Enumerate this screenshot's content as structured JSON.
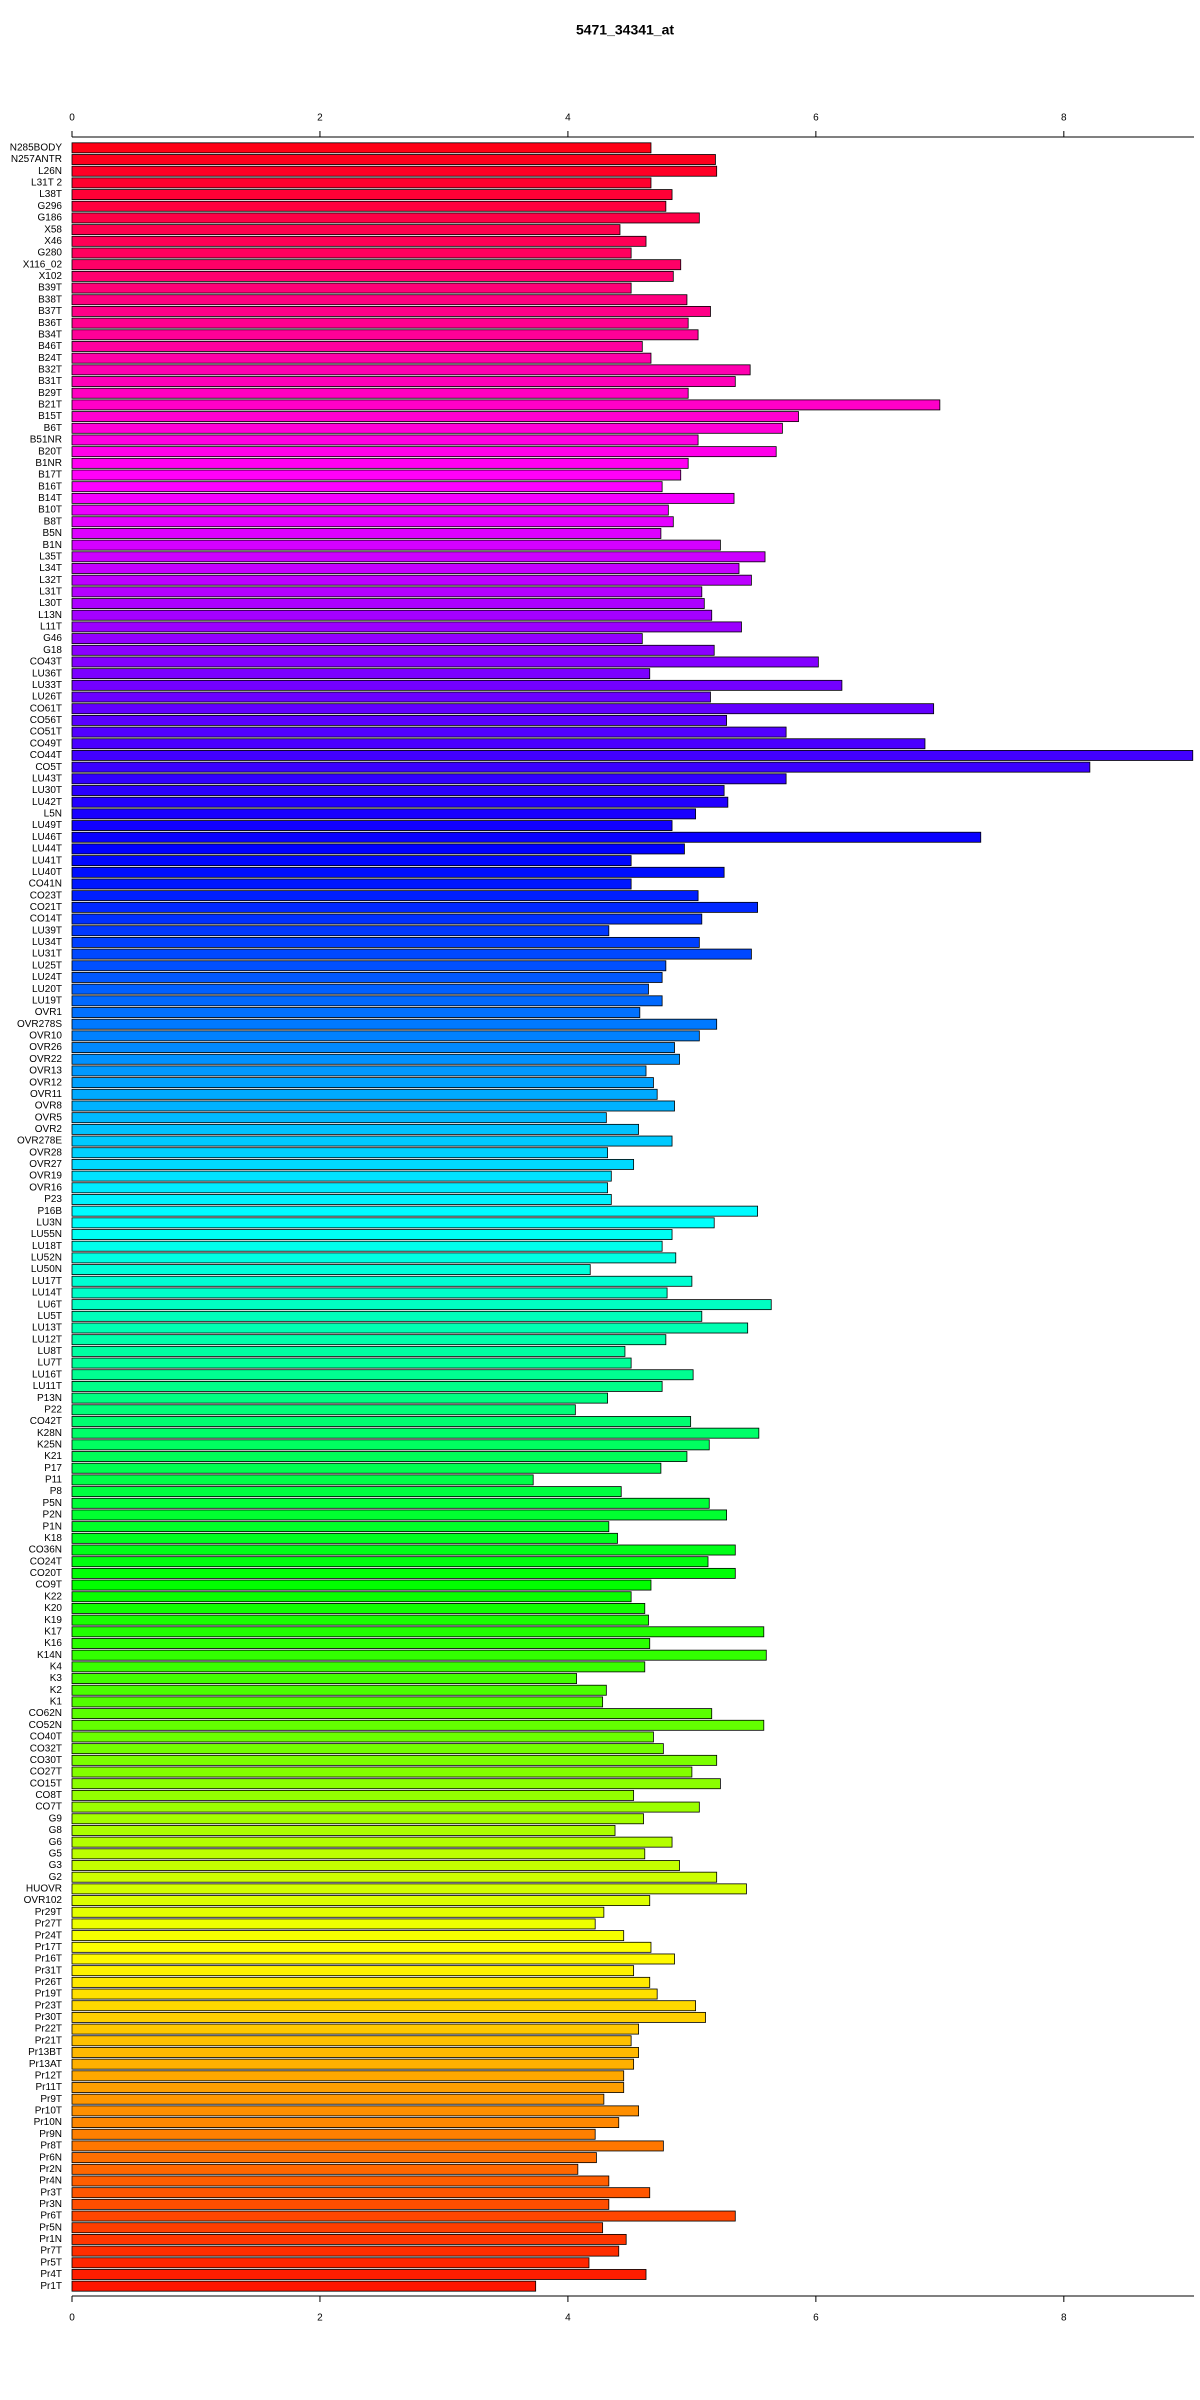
{
  "chart_data": {
    "type": "hbar",
    "title": "5471_34341_at",
    "categories": [
      "N285BODY",
      "N257ANTR",
      "L26N",
      "L31T 2",
      "L38T",
      "G296",
      "G186",
      "X58",
      "X46",
      "G280",
      "X116_02",
      "X102",
      "B39T",
      "B38T",
      "B37T",
      "B36T",
      "B34T",
      "B46T",
      "B24T",
      "B32T",
      "B31T",
      "B29T",
      "B21T",
      "B15T",
      "B6T",
      "B51NR",
      "B20T",
      "B1NR",
      "B17T",
      "B16T",
      "B14T",
      "B10T",
      "B8T",
      "B5N",
      "B1N",
      "L35T",
      "L34T",
      "L32T",
      "L31T",
      "L30T",
      "L13N",
      "L11T",
      "G46",
      "G18",
      "CO43T",
      "LU36T",
      "LU33T",
      "LU26T",
      "CO61T",
      "CO56T",
      "CO51T",
      "CO49T",
      "CO44T",
      "CO5T",
      "LU43T",
      "LU30T",
      "LU42T",
      "L5N",
      "LU49T",
      "LU46T",
      "LU44T",
      "LU41T",
      "LU40T",
      "CO41N",
      "CO23T",
      "CO21T",
      "CO14T",
      "LU39T",
      "LU34T",
      "LU31T",
      "LU25T",
      "LU24T",
      "LU20T",
      "LU19T",
      "OVR1",
      "OVR278S",
      "OVR10",
      "OVR26",
      "OVR22",
      "OVR13",
      "OVR12",
      "OVR11",
      "OVR8",
      "OVR5",
      "OVR2",
      "OVR278E",
      "OVR28",
      "OVR27",
      "OVR19",
      "OVR16",
      "P23",
      "P16B",
      "LU3N",
      "LU55N",
      "LU18T",
      "LU52N",
      "LU50N",
      "LU17T",
      "LU14T",
      "LU6T",
      "LU5T",
      "LU13T",
      "LU12T",
      "LU8T",
      "LU7T",
      "LU16T",
      "LU11T",
      "P13N",
      "P22",
      "CO42T",
      "K28N",
      "K25N",
      "K21",
      "P17",
      "P11",
      "P8",
      "P5N",
      "P2N",
      "P1N",
      "K18",
      "CO36N",
      "CO24T",
      "CO20T",
      "CO9T",
      "K22",
      "K20",
      "K19",
      "K17",
      "K16",
      "K14N",
      "K4",
      "K3",
      "K2",
      "K1",
      "CO62N",
      "CO52N",
      "CO40T",
      "CO32T",
      "CO30T",
      "CO27T",
      "CO15T",
      "CO8T",
      "CO7T",
      "G9",
      "G8",
      "G6",
      "G5",
      "G3",
      "G2",
      "HUOVR",
      "OVR102",
      "Pr29T",
      "Pr27T",
      "Pr24T",
      "Pr17T",
      "Pr16T",
      "Pr31T",
      "Pr26T",
      "Pr19T",
      "Pr23T",
      "Pr30T",
      "Pr22T",
      "Pr21T",
      "Pr13BT",
      "Pr13AT",
      "Pr12T",
      "Pr11T",
      "Pr9T",
      "Pr10T",
      "Pr10N",
      "Pr9N",
      "Pr8T",
      "Pr6N",
      "Pr2N",
      "Pr4N",
      "Pr3T",
      "Pr3N",
      "Pr6T",
      "Pr5N",
      "Pr1N",
      "Pr7T",
      "Pr5T",
      "Pr4T",
      "Pr1T"
    ],
    "values": [
      4.67,
      5.19,
      5.2,
      4.67,
      4.84,
      4.79,
      5.06,
      4.42,
      4.63,
      4.51,
      4.91,
      4.85,
      4.51,
      4.96,
      5.15,
      4.97,
      5.05,
      4.6,
      4.67,
      5.47,
      5.35,
      4.97,
      7.0,
      5.86,
      5.73,
      5.05,
      5.68,
      4.97,
      4.91,
      4.76,
      5.34,
      4.81,
      4.85,
      4.75,
      5.23,
      5.59,
      5.38,
      5.48,
      5.08,
      5.1,
      5.16,
      5.4,
      4.6,
      5.18,
      6.02,
      4.66,
      6.21,
      5.15,
      6.95,
      5.28,
      5.76,
      6.88,
      9.04,
      8.21,
      5.76,
      5.26,
      5.29,
      5.03,
      4.84,
      7.33,
      4.94,
      4.51,
      5.26,
      4.51,
      5.05,
      5.53,
      5.08,
      4.33,
      5.06,
      5.48,
      4.79,
      4.76,
      4.65,
      4.76,
      4.58,
      5.2,
      5.06,
      4.86,
      4.9,
      4.63,
      4.69,
      4.72,
      4.86,
      4.31,
      4.57,
      4.84,
      4.32,
      4.53,
      4.35,
      4.32,
      4.35,
      5.53,
      5.18,
      4.84,
      4.76,
      4.87,
      4.18,
      5.0,
      4.8,
      5.64,
      5.08,
      5.45,
      4.79,
      4.46,
      4.51,
      5.01,
      4.76,
      4.32,
      4.06,
      4.99,
      5.54,
      5.14,
      4.96,
      4.75,
      3.72,
      4.43,
      5.14,
      5.28,
      4.33,
      4.4,
      5.35,
      5.13,
      5.35,
      4.67,
      4.51,
      4.62,
      4.65,
      5.58,
      4.66,
      5.6,
      4.62,
      4.07,
      4.31,
      4.28,
      5.16,
      5.58,
      4.69,
      4.77,
      5.2,
      5.0,
      5.23,
      4.53,
      5.06,
      4.61,
      4.38,
      4.84,
      4.62,
      4.9,
      5.2,
      5.44,
      4.66,
      4.29,
      4.22,
      4.45,
      4.67,
      4.86,
      4.53,
      4.66,
      4.72,
      5.03,
      5.11,
      4.57,
      4.51,
      4.57,
      4.53,
      4.45,
      4.45,
      4.29,
      4.57,
      4.41,
      4.22,
      4.77,
      4.23,
      4.08,
      4.33,
      4.66,
      4.33,
      5.35,
      4.28,
      4.47,
      4.41,
      4.17,
      4.63,
      3.74
    ],
    "xlim": [
      0,
      9.05
    ],
    "xticks": [
      0,
      2,
      4,
      6,
      8
    ]
  }
}
